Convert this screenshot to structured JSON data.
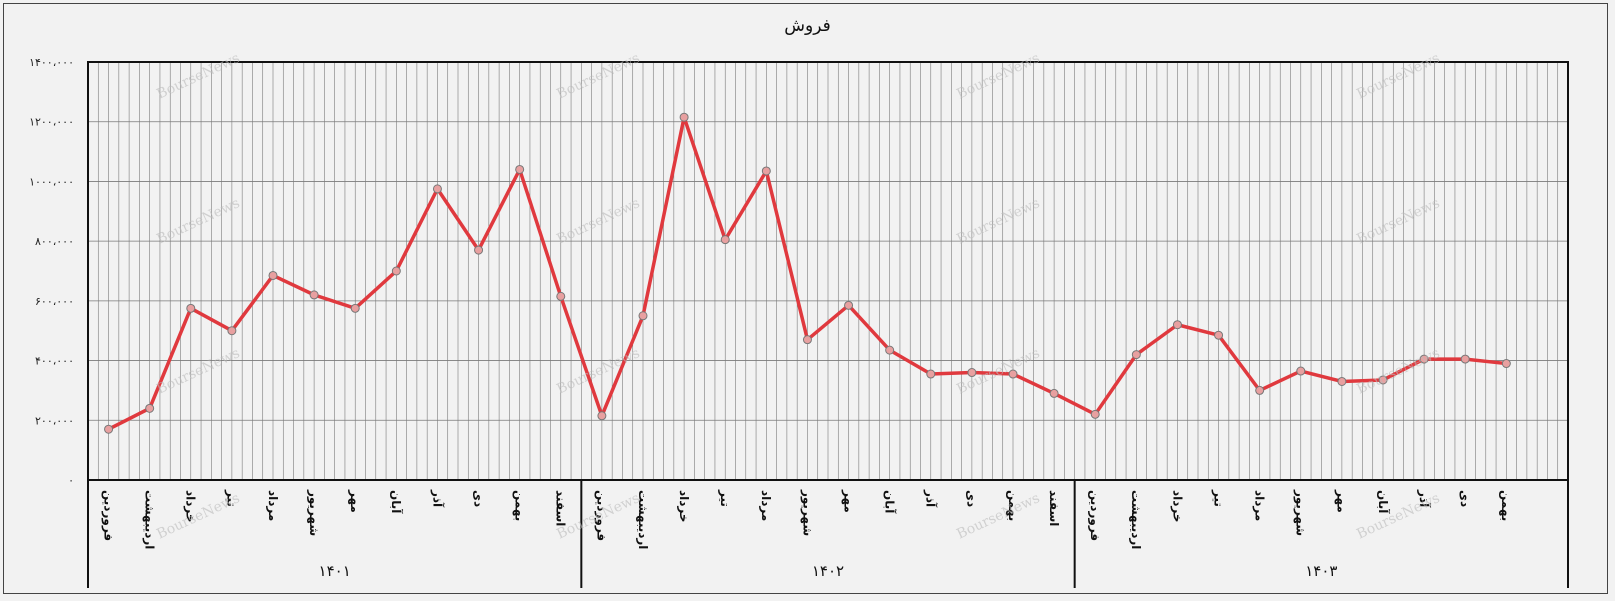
{
  "chart_data": {
    "type": "line",
    "title": "فروش",
    "y_tick_labels": [
      "۰",
      "۲۰۰،۰۰۰",
      "۴۰۰،۰۰۰",
      "۶۰۰،۰۰۰",
      "۸۰۰،۰۰۰",
      "۱۰۰۰،۰۰۰",
      "۱۲۰۰،۰۰۰",
      "۱۴۰۰،۰۰۰"
    ],
    "ylim": [
      0,
      1400000
    ],
    "grid": true,
    "legend": "none",
    "line_color": "#e0393e",
    "marker_color": "#e8a0a0",
    "groups": [
      {
        "year": "۱۴۰۱",
        "months": [
          "فروردین",
          "اردیبهشت",
          "خرداد",
          "تیر",
          "مرداد",
          "شهریور",
          "مهر",
          "آبان",
          "آذر",
          "دی",
          "بهمن",
          "اسفند"
        ],
        "values": [
          170000,
          240000,
          575000,
          500000,
          685000,
          620000,
          575000,
          700000,
          975000,
          770000,
          1040000,
          615000
        ]
      },
      {
        "year": "۱۴۰۲",
        "months": [
          "فروردین",
          "اردیبهشت",
          "خرداد",
          "تیر",
          "مرداد",
          "شهریور",
          "مهر",
          "آبان",
          "آذر",
          "دی",
          "بهمن",
          "اسفند"
        ],
        "values": [
          215000,
          550000,
          1215000,
          805000,
          1035000,
          470000,
          585000,
          435000,
          355000,
          360000,
          355000,
          290000
        ]
      },
      {
        "year": "۱۴۰۳",
        "months": [
          "فروردین",
          "اردیبهشت",
          "خرداد",
          "تیر",
          "مرداد",
          "شهریور",
          "مهر",
          "آبان",
          "آذر",
          "دی",
          "بهمن"
        ],
        "values": [
          220000,
          420000,
          520000,
          485000,
          300000,
          365000,
          330000,
          335000,
          405000,
          405000,
          390000
        ]
      }
    ]
  },
  "watermark": {
    "text": "BourseNews"
  }
}
